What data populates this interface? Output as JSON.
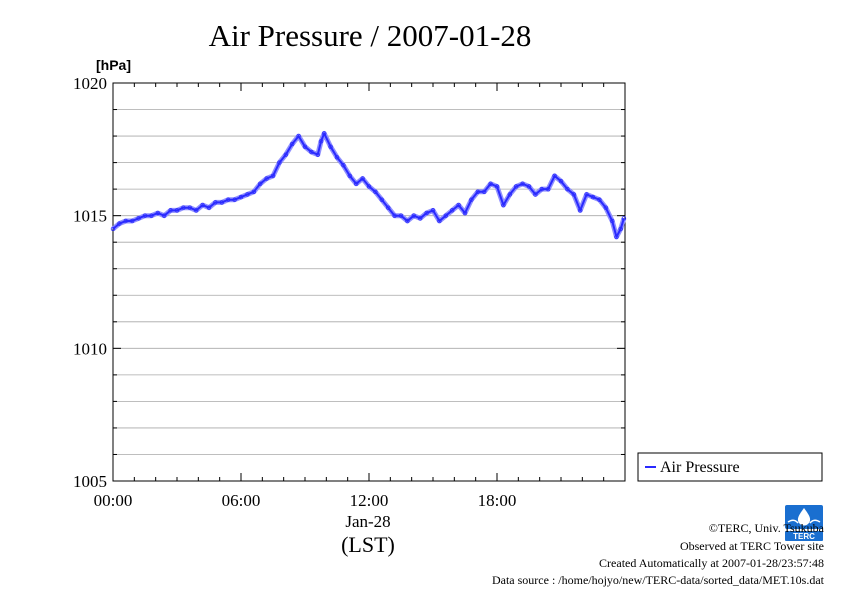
{
  "chart_data": {
    "type": "line",
    "title": "Air Pressure / 2007-01-28",
    "ylabel": "[hPa]",
    "ylim": [
      1005,
      1020
    ],
    "yticks": [
      1005,
      1010,
      1015,
      1020
    ],
    "ytick_labels": [
      "1005",
      "1010",
      "1015",
      "1020"
    ],
    "xlim": [
      0,
      24
    ],
    "xticks": [
      0,
      6,
      12,
      18
    ],
    "xtick_labels": [
      "00:00",
      "06:00",
      "12:00",
      "18:00"
    ],
    "date_label": "Jan-28",
    "xlabel": "(LST)",
    "grid": true,
    "legend_position": "right",
    "series": [
      {
        "name": "Air Pressure",
        "color": "#2a2aff",
        "points": [
          [
            0.0,
            1014.5
          ],
          [
            0.3,
            1014.7
          ],
          [
            0.6,
            1014.8
          ],
          [
            0.9,
            1014.8
          ],
          [
            1.2,
            1014.9
          ],
          [
            1.5,
            1015.0
          ],
          [
            1.8,
            1015.0
          ],
          [
            2.1,
            1015.1
          ],
          [
            2.4,
            1015.0
          ],
          [
            2.7,
            1015.2
          ],
          [
            3.0,
            1015.2
          ],
          [
            3.3,
            1015.3
          ],
          [
            3.6,
            1015.3
          ],
          [
            3.9,
            1015.2
          ],
          [
            4.2,
            1015.4
          ],
          [
            4.5,
            1015.3
          ],
          [
            4.8,
            1015.5
          ],
          [
            5.1,
            1015.5
          ],
          [
            5.4,
            1015.6
          ],
          [
            5.7,
            1015.6
          ],
          [
            6.0,
            1015.7
          ],
          [
            6.3,
            1015.8
          ],
          [
            6.6,
            1015.9
          ],
          [
            6.9,
            1016.2
          ],
          [
            7.2,
            1016.4
          ],
          [
            7.5,
            1016.5
          ],
          [
            7.8,
            1017.0
          ],
          [
            8.1,
            1017.3
          ],
          [
            8.4,
            1017.7
          ],
          [
            8.7,
            1018.0
          ],
          [
            9.0,
            1017.6
          ],
          [
            9.3,
            1017.4
          ],
          [
            9.6,
            1017.3
          ],
          [
            9.75,
            1017.8
          ],
          [
            9.9,
            1018.1
          ],
          [
            10.2,
            1017.6
          ],
          [
            10.5,
            1017.2
          ],
          [
            10.8,
            1016.9
          ],
          [
            11.1,
            1016.5
          ],
          [
            11.4,
            1016.2
          ],
          [
            11.7,
            1016.4
          ],
          [
            12.0,
            1016.1
          ],
          [
            12.3,
            1015.9
          ],
          [
            12.6,
            1015.6
          ],
          [
            12.9,
            1015.3
          ],
          [
            13.2,
            1015.0
          ],
          [
            13.5,
            1015.0
          ],
          [
            13.8,
            1014.8
          ],
          [
            14.1,
            1015.0
          ],
          [
            14.4,
            1014.9
          ],
          [
            14.7,
            1015.1
          ],
          [
            15.0,
            1015.2
          ],
          [
            15.3,
            1014.8
          ],
          [
            15.6,
            1015.0
          ],
          [
            15.9,
            1015.2
          ],
          [
            16.2,
            1015.4
          ],
          [
            16.5,
            1015.1
          ],
          [
            16.8,
            1015.6
          ],
          [
            17.1,
            1015.9
          ],
          [
            17.4,
            1015.9
          ],
          [
            17.7,
            1016.2
          ],
          [
            18.0,
            1016.1
          ],
          [
            18.3,
            1015.4
          ],
          [
            18.6,
            1015.8
          ],
          [
            18.9,
            1016.1
          ],
          [
            19.2,
            1016.2
          ],
          [
            19.5,
            1016.1
          ],
          [
            19.8,
            1015.8
          ],
          [
            20.1,
            1016.0
          ],
          [
            20.4,
            1016.0
          ],
          [
            20.7,
            1016.5
          ],
          [
            21.0,
            1016.3
          ],
          [
            21.3,
            1016.0
          ],
          [
            21.6,
            1015.8
          ],
          [
            21.9,
            1015.2
          ],
          [
            22.2,
            1015.8
          ],
          [
            22.5,
            1015.7
          ],
          [
            22.8,
            1015.6
          ],
          [
            23.1,
            1015.3
          ],
          [
            23.4,
            1014.8
          ],
          [
            23.6,
            1014.2
          ],
          [
            23.8,
            1014.5
          ],
          [
            23.95,
            1014.9
          ]
        ]
      }
    ]
  },
  "footer": {
    "copyright": "©TERC, Univ. Tsukuba",
    "observed": "Observed at TERC Tower site",
    "created": "Created Automatically at 2007-01-28/23:57:48",
    "source": "Data source : /home/hojyo/new/TERC-data/sorted_data/MET.10s.dat",
    "logo_text": "TERC"
  }
}
